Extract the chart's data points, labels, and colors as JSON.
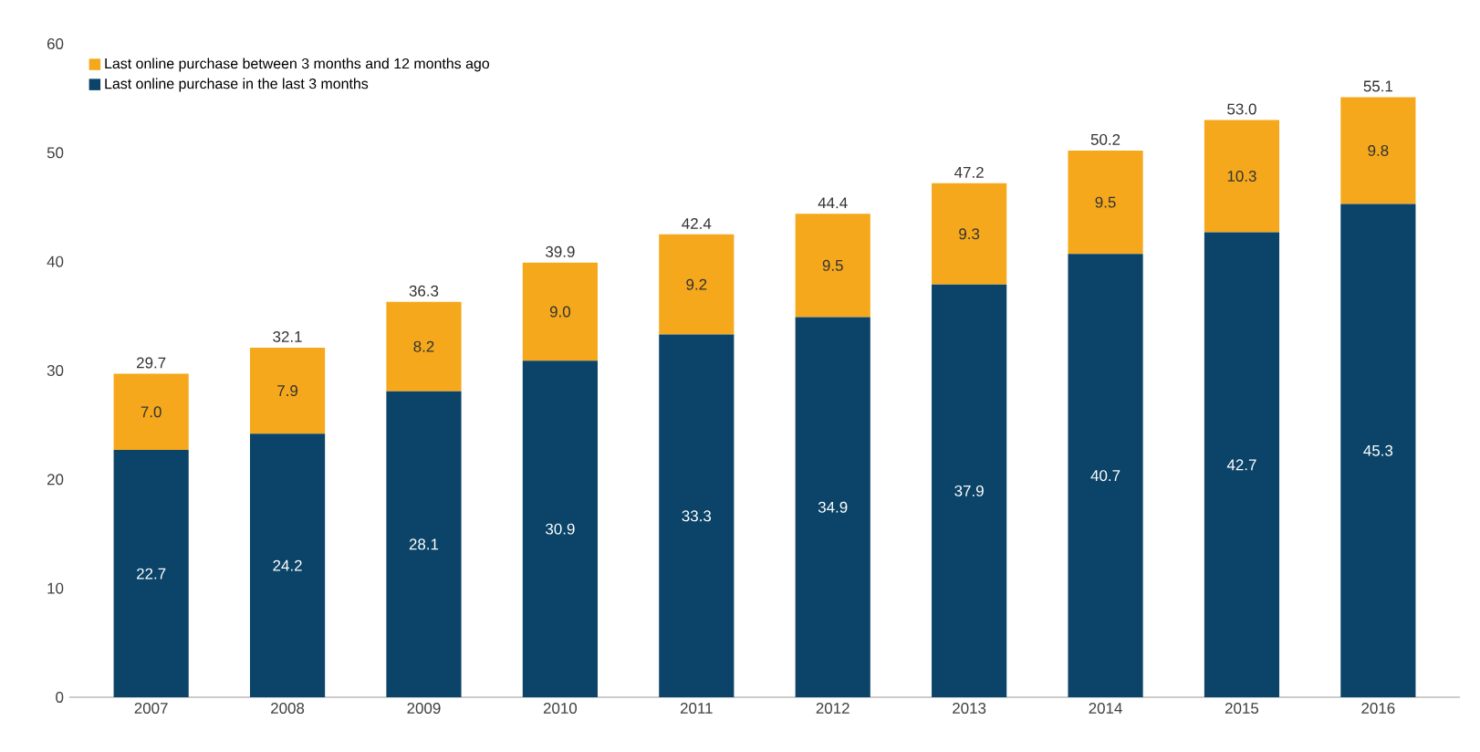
{
  "chart_data": {
    "type": "bar",
    "stacked": true,
    "data_labels": true,
    "legend": "top left",
    "grid": false,
    "categories": [
      "2007",
      "2008",
      "2009",
      "2010",
      "2011",
      "2012",
      "2013",
      "2014",
      "2015",
      "2016"
    ],
    "series": [
      {
        "name": "Last online purchase in the last 3 months",
        "color": "#0b4468",
        "values": [
          22.7,
          24.2,
          28.1,
          30.9,
          33.3,
          34.9,
          37.9,
          40.7,
          42.7,
          45.3
        ],
        "value_labels": [
          "22.7",
          "24.2",
          "28.1",
          "30.9",
          "33.3",
          "34.9",
          "37.9",
          "40.7",
          "42.7",
          "45.3"
        ]
      },
      {
        "name": "Last online purchase between 3 months and 12 months ago",
        "color": "#f5a81c",
        "values": [
          7.0,
          7.9,
          8.2,
          9.0,
          9.2,
          9.5,
          9.3,
          9.5,
          10.3,
          9.8
        ],
        "value_labels": [
          "7.0",
          "7.9",
          "8.2",
          "9.0",
          "9.2",
          "9.5",
          "9.3",
          "9.5",
          "10.3",
          "9.8"
        ]
      }
    ],
    "totals": [
      "29.7",
      "32.1",
      "36.3",
      "39.9",
      "42.4",
      "44.4",
      "47.2",
      "50.2",
      "53.0",
      "55.1"
    ],
    "ylim": [
      0,
      60
    ],
    "yticks": [
      0,
      10,
      20,
      30,
      40,
      50,
      60
    ]
  }
}
